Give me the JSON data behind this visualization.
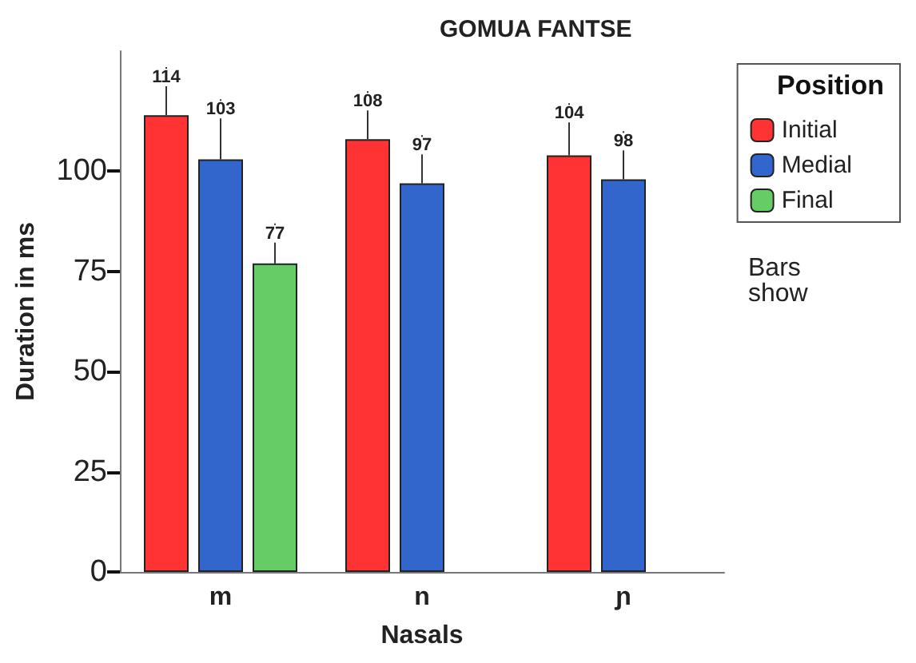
{
  "chart_data": {
    "type": "bar",
    "title": "GOMUA FANTSE",
    "xlabel": "Nasals",
    "ylabel": "Duration in ms",
    "legend_title": "Position",
    "categories": [
      "m",
      "n",
      "ɲ"
    ],
    "series": [
      {
        "name": "Initial",
        "color": "#ff3333",
        "values": [
          114,
          108,
          104
        ],
        "errors": [
          12,
          12,
          13
        ]
      },
      {
        "name": "Medial",
        "color": "#3366cc",
        "values": [
          103,
          97,
          98
        ],
        "errors": [
          15,
          12,
          12
        ]
      },
      {
        "name": "Final",
        "color": "#66cc66",
        "values": [
          77,
          null,
          null
        ],
        "errors": [
          10,
          null,
          null
        ]
      }
    ],
    "ylim": [
      0,
      130
    ],
    "yticks": [
      0,
      25,
      50,
      75,
      100
    ],
    "data_labels": true,
    "legend": "top right",
    "grid": false,
    "annotations": [
      "Bars show"
    ]
  }
}
